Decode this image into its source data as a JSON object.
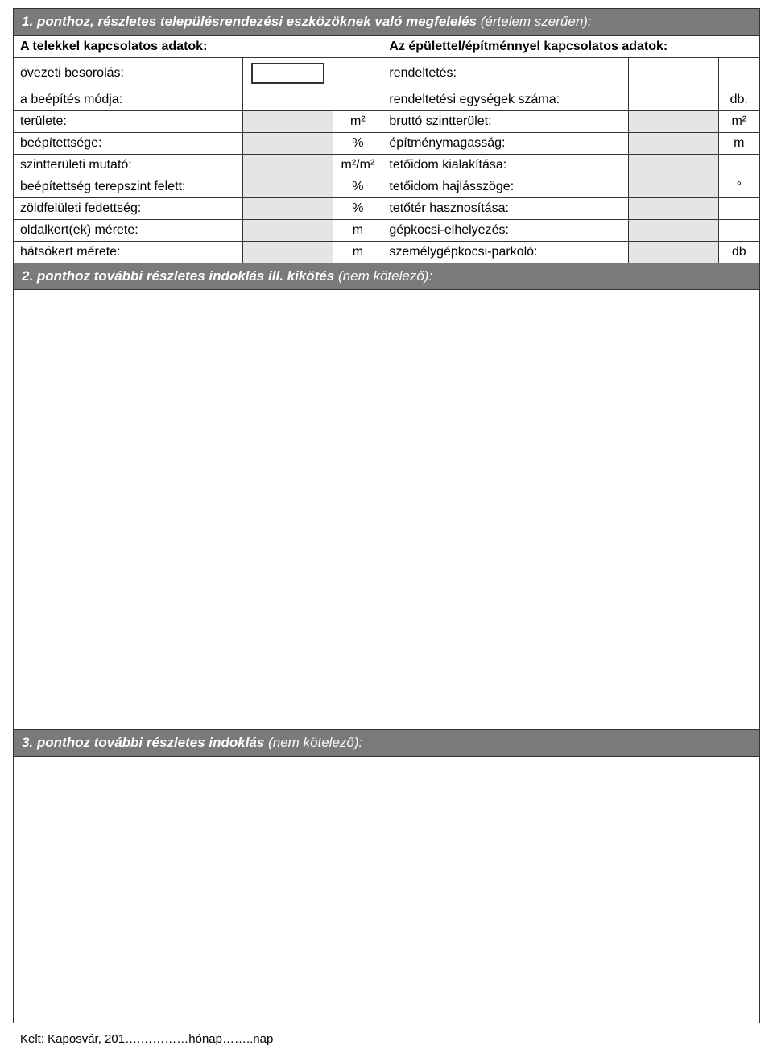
{
  "section1": {
    "header": "1. ponthoz, részletes településrendezési eszközöknek való megfelelés",
    "header_paren": "(értelem szerűen):",
    "left_title": "A telekkel kapcsolatos adatok:",
    "right_title": "Az épülettel/építménnyel kapcsolatos adatok:",
    "rows": [
      {
        "l": "övezeti besorolás:",
        "lu": "",
        "r": "rendeltetés:",
        "ru": "",
        "inset": true,
        "rval_white": true
      },
      {
        "l": "a beépítés módja:",
        "lu": "",
        "r": "rendeltetési egységek száma:",
        "ru": "db.",
        "rval_white": true
      },
      {
        "l": "területe:",
        "lu": "m²",
        "r": "bruttó szintterület:",
        "ru": "m²"
      },
      {
        "l": "beépítettsége:",
        "lu": "%",
        "r": "építménymagasság:",
        "ru": "m"
      },
      {
        "l": "szintterületi mutató:",
        "lu": "m²/m²",
        "r": "tetőidom kialakítása:",
        "ru": ""
      },
      {
        "l": "beépítettség terepszint felett:",
        "lu": "%",
        "r": "tetőidom hajlásszöge:",
        "ru": "°"
      },
      {
        "l": "zöldfelületi fedettség:",
        "lu": "%",
        "r": "tetőtér hasznosítása:",
        "ru": ""
      },
      {
        "l": "oldalkert(ek) mérete:",
        "lu": "m",
        "r": "gépkocsi-elhelyezés:",
        "ru": ""
      },
      {
        "l": "hátsókert mérete:",
        "lu": "m",
        "r": "személygépkocsi-parkoló:",
        "ru": "db"
      }
    ]
  },
  "section2": {
    "header": "2. ponthoz további részletes indoklás ill. kikötés",
    "header_paren": "(nem kötelező):"
  },
  "section3": {
    "header": "3. ponthoz további részletes indoklás",
    "header_paren": "(nem kötelező):"
  },
  "footer": "Kelt: Kaposvár, 201….…………hónap……..nap"
}
